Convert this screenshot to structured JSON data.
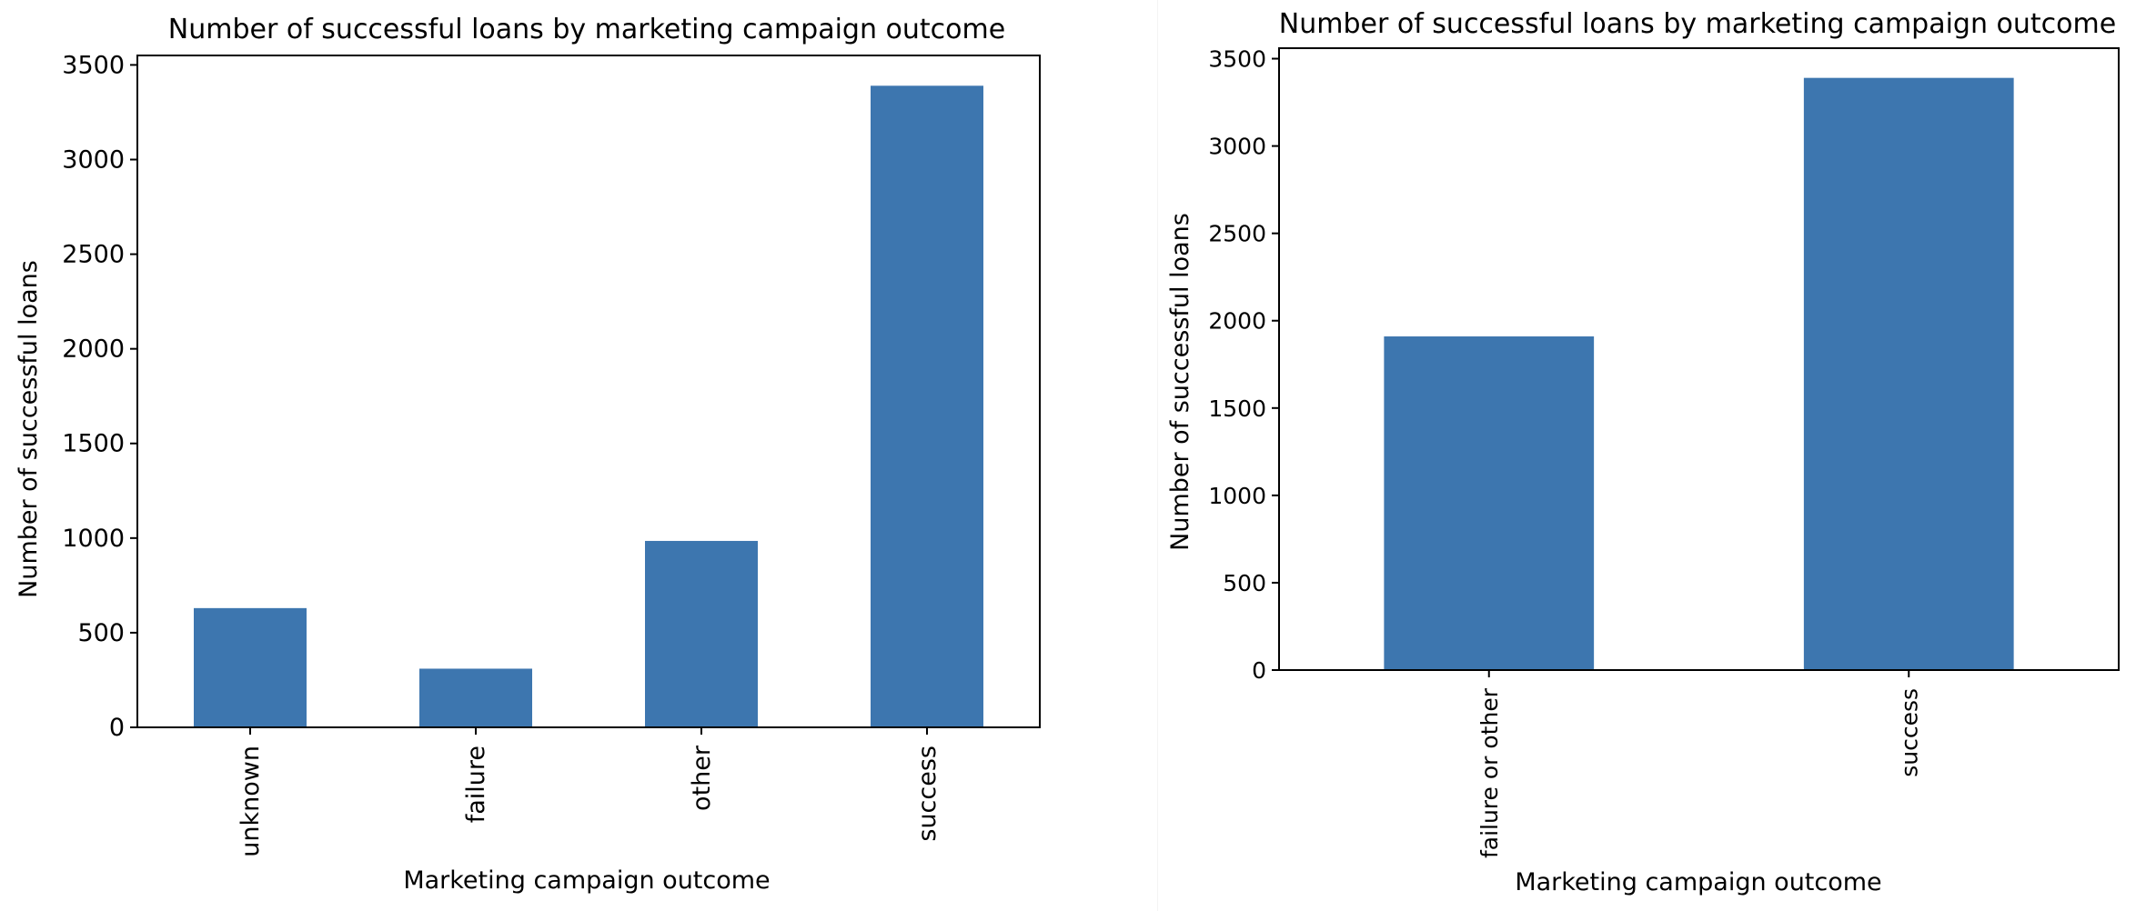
{
  "chart_data": [
    {
      "type": "bar",
      "title": "Number of successful loans by marketing campaign outcome",
      "xlabel": "Marketing campaign outcome",
      "ylabel": "Number of successful loans",
      "categories": [
        "unknown",
        "failure",
        "other",
        "success"
      ],
      "values": [
        630,
        310,
        985,
        3390
      ],
      "ylim": [
        0,
        3550
      ],
      "yticks": [
        0,
        500,
        1000,
        1500,
        2000,
        2500,
        3000,
        3500
      ],
      "bar_color": "#3d76af",
      "grid": false,
      "legend": "none"
    },
    {
      "type": "bar",
      "title": "Number of successful loans by marketing campaign outcome",
      "xlabel": "Marketing campaign outcome",
      "ylabel": "Number of successful loans",
      "categories": [
        "failure or other",
        "success"
      ],
      "values": [
        1910,
        3390
      ],
      "ylim": [
        0,
        3560
      ],
      "yticks": [
        0,
        500,
        1000,
        1500,
        2000,
        2500,
        3000,
        3500
      ],
      "bar_color": "#3d76af",
      "grid": false,
      "legend": "none"
    }
  ]
}
